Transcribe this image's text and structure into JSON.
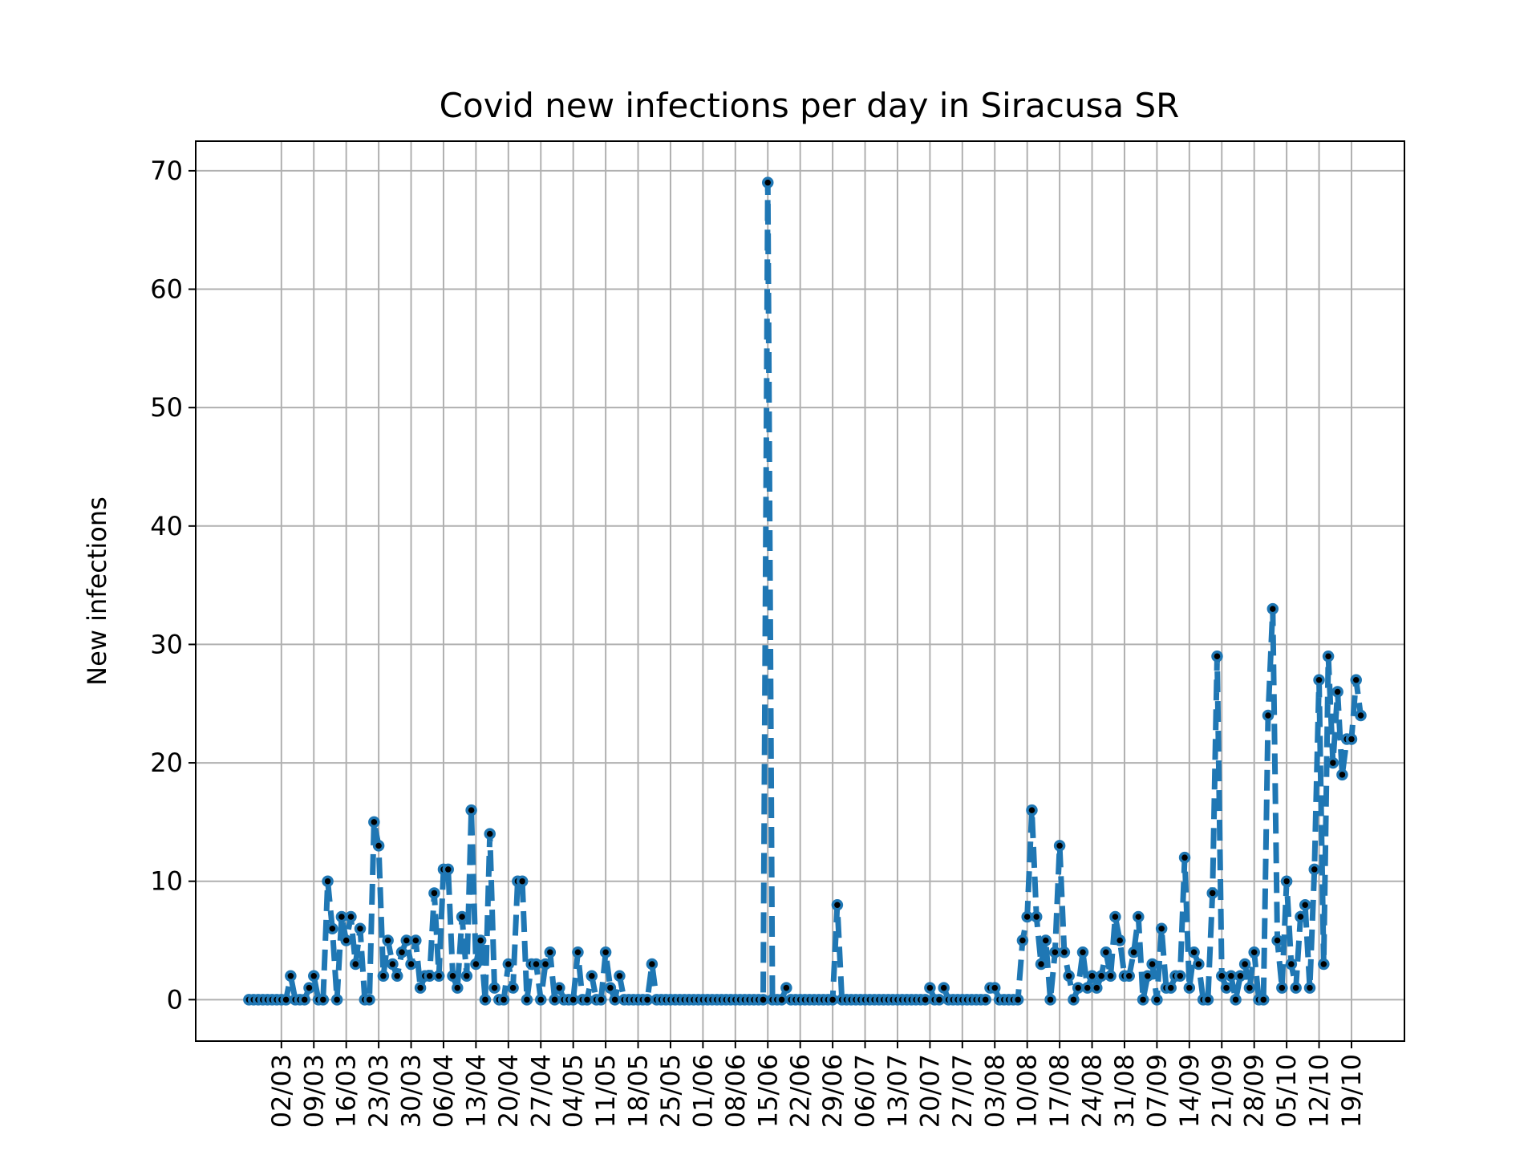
{
  "chart_data": {
    "type": "line",
    "title": "Covid new infections per day in Siracusa SR",
    "xlabel": "",
    "ylabel": "New infections",
    "x_start": "2020-02-24",
    "x_tick_labels": [
      "02/03",
      "09/03",
      "16/03",
      "23/03",
      "30/03",
      "06/04",
      "13/04",
      "20/04",
      "27/04",
      "04/05",
      "11/05",
      "18/05",
      "25/05",
      "01/06",
      "08/06",
      "15/06",
      "22/06",
      "29/06",
      "06/07",
      "13/07",
      "20/07",
      "27/07",
      "03/08",
      "10/08",
      "17/08",
      "24/08",
      "31/08",
      "07/09",
      "14/09",
      "21/09",
      "28/09",
      "05/10",
      "12/10",
      "19/10"
    ],
    "y_ticks": [
      0,
      10,
      20,
      30,
      40,
      50,
      60,
      70
    ],
    "ylim": [
      -3.5,
      72.5
    ],
    "grid": true,
    "series": [
      {
        "values": [
          0,
          0,
          0,
          0,
          0,
          0,
          0,
          0,
          0,
          2,
          0,
          0,
          0,
          1,
          2,
          0,
          0,
          10,
          6,
          0,
          7,
          5,
          7,
          3,
          6,
          0,
          0,
          15,
          13,
          2,
          5,
          3,
          2,
          4,
          5,
          3,
          5,
          1,
          2,
          2,
          9,
          2,
          11,
          11,
          2,
          1,
          7,
          2,
          16,
          3,
          5,
          0,
          14,
          1,
          0,
          0,
          3,
          1,
          10,
          10,
          0,
          3,
          3,
          0,
          3,
          4,
          0,
          1,
          0,
          0,
          0,
          4,
          0,
          0,
          2,
          0,
          0,
          4,
          1,
          0,
          2,
          0,
          0,
          0,
          0,
          0,
          0,
          3,
          0,
          0,
          0,
          0,
          0,
          0,
          0,
          0,
          0,
          0,
          0,
          0,
          0,
          0,
          0,
          0,
          0,
          0,
          0,
          0,
          0,
          0,
          0,
          0,
          69,
          0,
          0,
          0,
          1,
          0,
          0,
          0,
          0,
          0,
          0,
          0,
          0,
          0,
          0,
          8,
          0,
          0,
          0,
          0,
          0,
          0,
          0,
          0,
          0,
          0,
          0,
          0,
          0,
          0,
          0,
          0,
          0,
          0,
          0,
          1,
          0,
          0,
          1,
          0,
          0,
          0,
          0,
          0,
          0,
          0,
          0,
          0,
          1,
          1,
          0,
          0,
          0,
          0,
          0,
          5,
          7,
          16,
          7,
          3,
          5,
          0,
          4,
          13,
          4,
          2,
          0,
          1,
          4,
          1,
          2,
          1,
          2,
          4,
          2,
          7,
          5,
          2,
          2,
          4,
          7,
          0,
          2,
          3,
          0,
          6,
          1,
          1,
          2,
          2,
          12,
          1,
          4,
          3,
          0,
          0,
          9,
          29,
          2,
          1,
          2,
          0,
          2,
          3,
          1,
          4,
          0,
          0,
          24,
          33,
          5,
          1,
          10,
          3,
          1,
          7,
          8,
          1,
          11,
          27,
          3,
          29,
          20,
          26,
          19,
          22,
          22,
          27,
          24
        ]
      }
    ]
  }
}
